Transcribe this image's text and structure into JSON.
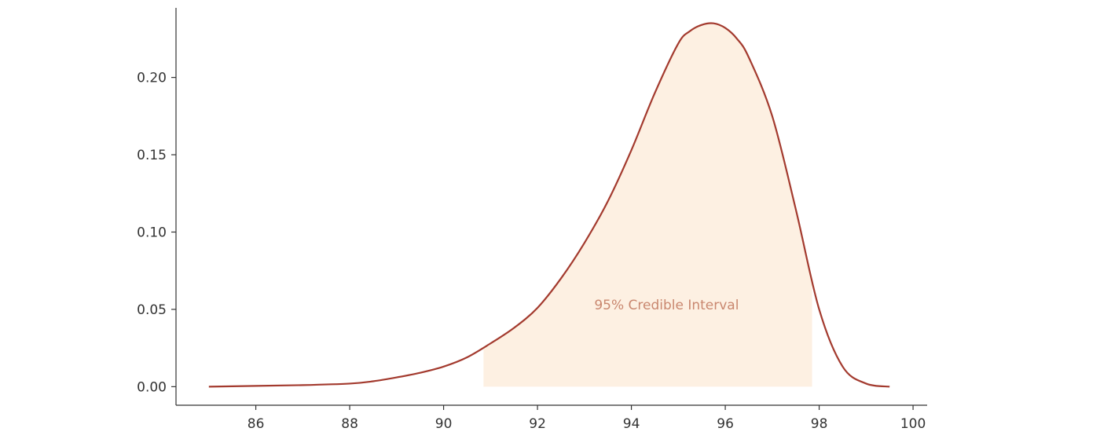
{
  "chart_data": {
    "type": "area",
    "title": "",
    "xlabel": "",
    "ylabel": "",
    "xlim": [
      84.3,
      100.3
    ],
    "ylim": [
      -0.012,
      0.245
    ],
    "x_ticks": [
      86,
      88,
      90,
      92,
      94,
      96,
      98,
      100
    ],
    "x_tick_labels": [
      "86",
      "88",
      "90",
      "92",
      "94",
      "96",
      "98",
      "100"
    ],
    "y_ticks": [
      0.0,
      0.05,
      0.1,
      0.15,
      0.2
    ],
    "y_tick_labels": [
      "0.00",
      "0.05",
      "0.10",
      "0.15",
      "0.20"
    ],
    "grid": false,
    "series": [
      {
        "x": [
          85.0,
          86.0,
          87.0,
          88.0,
          88.5,
          89.0,
          89.5,
          90.0,
          90.5,
          91.0,
          91.5,
          92.0,
          92.5,
          93.0,
          93.5,
          94.0,
          94.5,
          95.0,
          95.25,
          95.5,
          95.75,
          96.0,
          96.25,
          96.5,
          97.0,
          97.5,
          98.0,
          98.5,
          99.0,
          99.5
        ],
        "y": [
          0.0,
          0.0005,
          0.001,
          0.002,
          0.0035,
          0.006,
          0.009,
          0.013,
          0.019,
          0.028,
          0.038,
          0.051,
          0.07,
          0.093,
          0.12,
          0.153,
          0.19,
          0.222,
          0.23,
          0.234,
          0.235,
          0.232,
          0.225,
          0.213,
          0.175,
          0.115,
          0.05,
          0.013,
          0.002,
          0.0
        ],
        "color": "#a33a2e"
      }
    ],
    "interval": {
      "label": "95% Credible Interval",
      "x_start": 90.85,
      "x_end": 97.85,
      "fill_color": "#fdf0e2",
      "label_x": 94.75,
      "label_y": 0.053
    }
  }
}
